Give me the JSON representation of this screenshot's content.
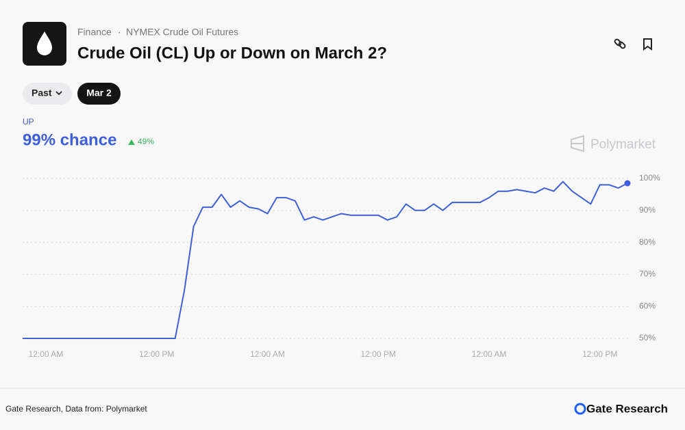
{
  "header": {
    "category": "Finance",
    "series_name": "NYMEX Crude Oil Futures",
    "title": "Crude Oil (CL) Up or Down on March 2?"
  },
  "filters": {
    "past": "Past",
    "date": "Mar 2"
  },
  "outcome": {
    "chance": "99% chance",
    "change": "49%"
  },
  "brand": "Polymarket",
  "chart_data": {
    "type": "line",
    "categories": [
      null,
      null,
      "12:00 AM",
      null,
      null,
      null,
      null,
      null,
      null,
      null,
      null,
      null,
      null,
      null,
      "12:00 PM",
      null,
      null,
      null,
      null,
      null,
      null,
      null,
      null,
      null,
      null,
      null,
      "12:00 AM",
      null,
      null,
      null,
      null,
      null,
      null,
      null,
      null,
      null,
      null,
      null,
      "12:00 PM",
      null,
      null,
      null,
      null,
      null,
      null,
      null,
      null,
      null,
      null,
      null,
      "12:00 AM",
      null,
      null,
      null,
      null,
      null,
      null,
      null,
      null,
      null,
      null,
      null,
      "12:00 PM",
      null,
      null,
      null
    ],
    "series": [
      {
        "name": "UP",
        "color": "#3d5fd9",
        "values": [
          50,
          50,
          50,
          50,
          50,
          50,
          50,
          50,
          50,
          50,
          50,
          50,
          50,
          50,
          50,
          50,
          50,
          65,
          85,
          91,
          91,
          95,
          91,
          93,
          91,
          90.5,
          89,
          94,
          94,
          93,
          87,
          88,
          87,
          88,
          89,
          88.5,
          88.5,
          88.5,
          88.5,
          87,
          88,
          92,
          90,
          90,
          92,
          90,
          92.5,
          92.5,
          92.5,
          92.5,
          94,
          96,
          96,
          96.5,
          96,
          95.5,
          97,
          96,
          99,
          96,
          94,
          92,
          98,
          98,
          97,
          98.5
        ]
      }
    ],
    "ylim": [
      50,
      100
    ],
    "yticks": [
      {
        "value": 50,
        "label": "50%"
      },
      {
        "value": 60,
        "label": "60%"
      },
      {
        "value": 70,
        "label": "70%"
      },
      {
        "value": 80,
        "label": "80%"
      },
      {
        "value": 90,
        "label": "90%"
      },
      {
        "value": 100,
        "label": "100%"
      }
    ],
    "grid": true
  },
  "footer": {
    "source": "Gate Research, Data from: Polymarket",
    "logo": "Gate Research"
  }
}
